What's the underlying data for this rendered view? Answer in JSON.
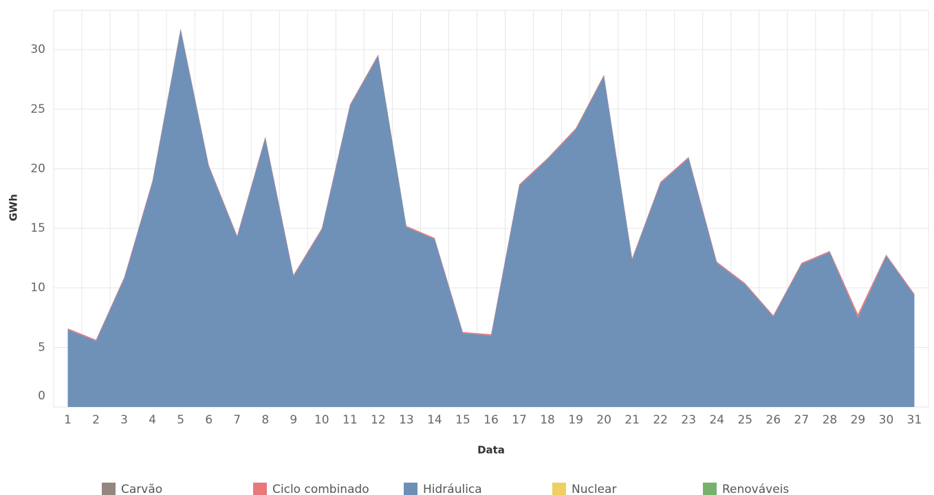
{
  "chart_data": {
    "type": "stacked_area",
    "x_label": "Data",
    "y_label": "GWh",
    "categories": [
      "1",
      "2",
      "3",
      "4",
      "5",
      "6",
      "7",
      "8",
      "9",
      "10",
      "11",
      "12",
      "13",
      "14",
      "15",
      "16",
      "17",
      "18",
      "19",
      "20",
      "21",
      "22",
      "23",
      "24",
      "25",
      "26",
      "27",
      "28",
      "29",
      "30",
      "31"
    ],
    "series": [
      {
        "name": "Carvão",
        "color": "#94877f",
        "values": [
          0,
          0,
          0,
          0,
          0,
          0,
          0,
          0,
          0,
          0,
          0,
          0,
          0,
          0,
          0,
          0,
          0,
          0,
          0,
          0,
          0,
          0,
          0,
          0,
          0,
          0,
          0,
          0,
          0,
          0,
          0
        ]
      },
      {
        "name": "Ciclo combinado",
        "color": "#e8787a",
        "values": [
          0.1,
          0.1,
          0.1,
          0.1,
          0.1,
          0.1,
          0.1,
          0.1,
          0.1,
          0.1,
          0.1,
          0.1,
          0.1,
          0.1,
          0.1,
          0.1,
          0.1,
          0.1,
          0.1,
          0.1,
          0.1,
          0.1,
          0.1,
          0.1,
          0.1,
          0.1,
          0.1,
          0.1,
          0.3,
          0.1,
          0.1
        ]
      },
      {
        "name": "Hidráulica",
        "color": "#6d8fb6",
        "values": [
          6.5,
          5.55,
          10.8,
          18.9,
          31.7,
          20.2,
          14.3,
          22.6,
          11.0,
          14.9,
          25.3,
          29.5,
          15.1,
          14.1,
          6.2,
          6.0,
          18.6,
          20.8,
          23.3,
          27.8,
          12.4,
          18.8,
          20.9,
          12.1,
          10.3,
          7.6,
          12.0,
          13.0,
          7.5,
          12.7,
          9.4
        ]
      },
      {
        "name": "Nuclear",
        "color": "#efcf60",
        "values": [
          0,
          0,
          0,
          0,
          0,
          0,
          0,
          0,
          0,
          0,
          0,
          0,
          0,
          0,
          0,
          0,
          0,
          0,
          0,
          0,
          0,
          0,
          0,
          0,
          0,
          0,
          0,
          0,
          0,
          0,
          0
        ]
      },
      {
        "name": "Renováveis",
        "color": "#77b26d",
        "values": [
          0,
          0,
          0,
          0,
          0,
          0,
          0,
          0,
          0,
          0,
          0,
          0,
          0,
          0,
          0,
          0,
          0,
          0,
          0,
          0,
          0,
          0,
          0,
          0,
          0,
          0,
          0,
          0,
          0,
          0,
          0
        ]
      }
    ],
    "ylim": [
      0,
      33.3
    ],
    "yticks": [
      0,
      5,
      10,
      15,
      20,
      25,
      30
    ],
    "grid": true,
    "legend": "bottom"
  }
}
